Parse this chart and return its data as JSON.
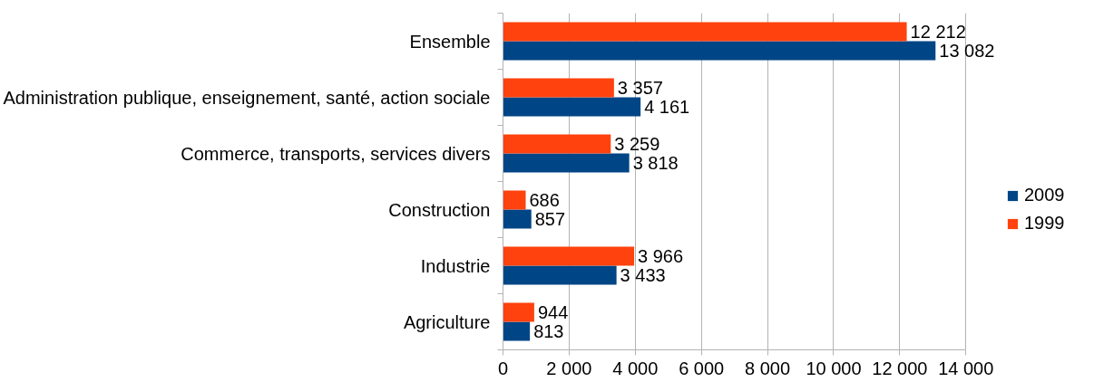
{
  "chart_data": {
    "type": "bar",
    "orientation": "horizontal",
    "categories": [
      "Ensemble",
      "Administration publique, enseignement, santé, action sociale",
      "Commerce, transports, services divers",
      "Construction",
      "Industrie",
      "Agriculture"
    ],
    "series": [
      {
        "name": "2009",
        "color": "#004586",
        "values": [
          13082,
          4161,
          3818,
          857,
          3433,
          813
        ],
        "value_labels": [
          "13 082",
          "4 161",
          "3 818",
          "857",
          "3 433",
          "813"
        ]
      },
      {
        "name": "1999",
        "color": "#ff420e",
        "values": [
          12212,
          3357,
          3259,
          686,
          3966,
          944
        ],
        "value_labels": [
          "12 212",
          "3 357",
          "3 259",
          "686",
          "3 966",
          "944"
        ]
      }
    ],
    "xlim": [
      0,
      14000
    ],
    "xticks": [
      0,
      {
        "value": 2000,
        "label": "2 000"
      },
      {
        "value": 4000,
        "label": "4 000"
      },
      {
        "value": 6000,
        "label": "6 000"
      },
      {
        "value": 8000,
        "label": "8 000"
      },
      {
        "value": 10000,
        "label": "10 000"
      },
      {
        "value": 12000,
        "label": "12 000"
      },
      {
        "value": 14000,
        "label": "14 000"
      }
    ],
    "grid": "x",
    "legend": "right"
  }
}
